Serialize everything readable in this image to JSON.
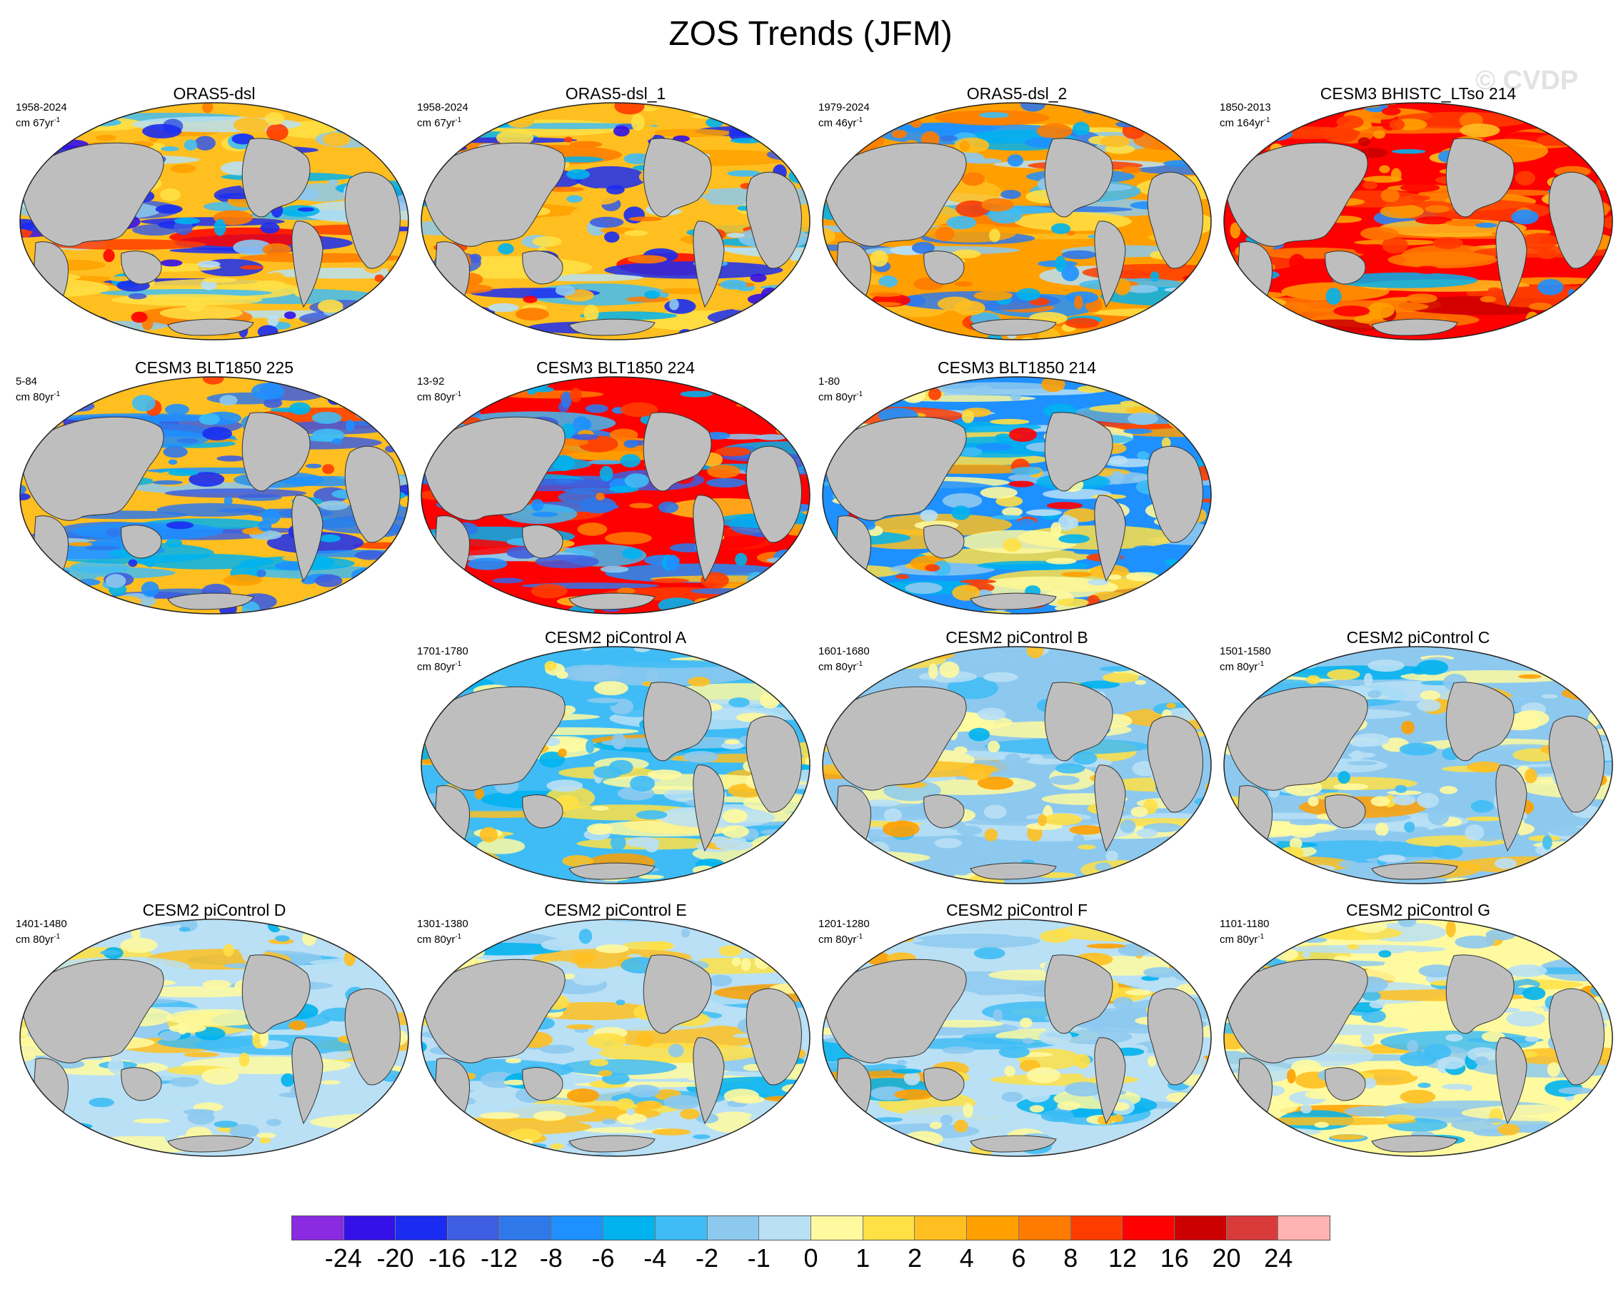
{
  "title": "ZOS Trends (JFM)",
  "watermark": "© CVDP",
  "panels": [
    {
      "title": "ORAS5-dsl",
      "period": "1958-2024",
      "unit_base": "cm 67yr",
      "unit_exp": "-1",
      "style": "obs1"
    },
    {
      "title": "ORAS5-dsl_1",
      "period": "1958-2024",
      "unit_base": "cm 67yr",
      "unit_exp": "-1",
      "style": "obs1"
    },
    {
      "title": "ORAS5-dsl_2",
      "period": "1979-2024",
      "unit_base": "cm 46yr",
      "unit_exp": "-1",
      "style": "obs2"
    },
    {
      "title": "CESM3 BHISTC_LTso 214",
      "period": "1850-2013",
      "unit_base": "cm 164yr",
      "unit_exp": "-1",
      "style": "warm"
    },
    {
      "title": "CESM3 BLT1850 225",
      "period": "5-84",
      "unit_base": "cm 80yr",
      "unit_exp": "-1",
      "style": "cool"
    },
    {
      "title": "CESM3 BLT1850 224",
      "period": "13-92",
      "unit_base": "cm 80yr",
      "unit_exp": "-1",
      "style": "coolmix"
    },
    {
      "title": "CESM3 BLT1850 214",
      "period": "1-80",
      "unit_base": "cm 80yr",
      "unit_exp": "-1",
      "style": "mixed"
    },
    {
      "title": "CESM2 piControl A",
      "period": "1701-1780",
      "unit_base": "cm 80yr",
      "unit_exp": "-1",
      "style": "pi"
    },
    {
      "title": "CESM2 piControl B",
      "period": "1601-1680",
      "unit_base": "cm 80yr",
      "unit_exp": "-1",
      "style": "pi"
    },
    {
      "title": "CESM2 piControl C",
      "period": "1501-1580",
      "unit_base": "cm 80yr",
      "unit_exp": "-1",
      "style": "pi"
    },
    {
      "title": "CESM2 piControl D",
      "period": "1401-1480",
      "unit_base": "cm 80yr",
      "unit_exp": "-1",
      "style": "pi"
    },
    {
      "title": "CESM2 piControl E",
      "period": "1301-1380",
      "unit_base": "cm 80yr",
      "unit_exp": "-1",
      "style": "pi"
    },
    {
      "title": "CESM2 piControl F",
      "period": "1201-1280",
      "unit_base": "cm 80yr",
      "unit_exp": "-1",
      "style": "pi"
    },
    {
      "title": "CESM2 piControl G",
      "period": "1101-1180",
      "unit_base": "cm 80yr",
      "unit_exp": "-1",
      "style": "pi"
    }
  ],
  "colorbar": {
    "colors": [
      "#8a2be2",
      "#3311e8",
      "#1a2cf2",
      "#3d5ee0",
      "#2f78ea",
      "#1e90ff",
      "#00b2ee",
      "#3fbcf5",
      "#8dc9ef",
      "#b9e0f5",
      "#fffaa0",
      "#ffe045",
      "#ffbf20",
      "#ffa000",
      "#ff7b00",
      "#ff3c00",
      "#ff0000",
      "#cc0000",
      "#d93b3b",
      "#ffb3b3"
    ],
    "labels": [
      "-24",
      "-20",
      "-16",
      "-12",
      "-8",
      "-6",
      "-4",
      "-2",
      "-1",
      "0",
      "1",
      "2",
      "4",
      "6",
      "8",
      "12",
      "16",
      "20",
      "24"
    ]
  },
  "land_color": "#bebebe",
  "outline_color": "#333333"
}
